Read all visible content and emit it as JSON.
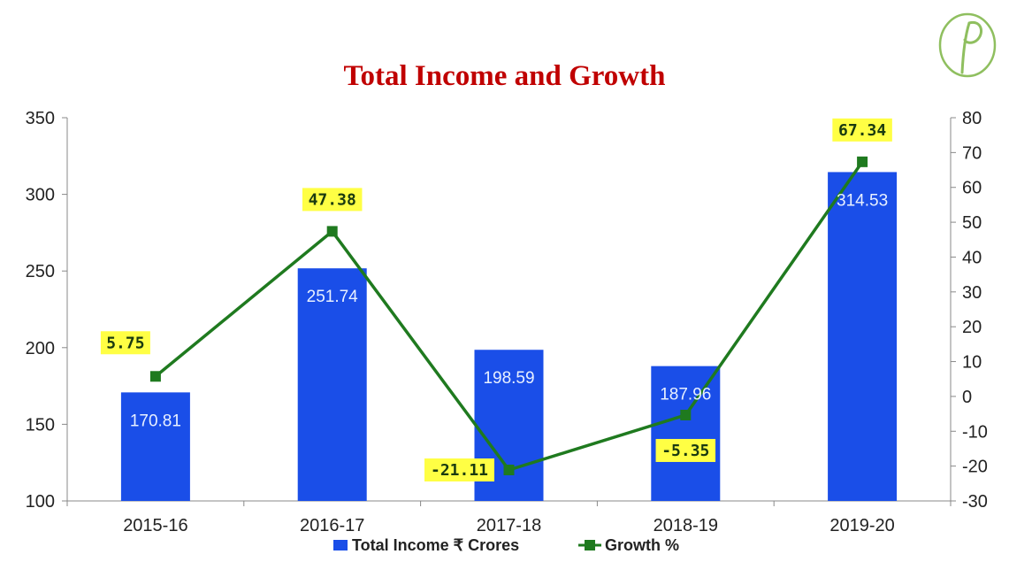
{
  "chart_data": {
    "type": "bar",
    "title": "Total Income and Growth",
    "categories": [
      "2015-16",
      "2016-17",
      "2017-18",
      "2018-19",
      "2019-20"
    ],
    "series": [
      {
        "name": "Total Income ₹ Crores",
        "kind": "bar",
        "axis": "left",
        "values": [
          170.81,
          251.74,
          198.59,
          187.96,
          314.53
        ],
        "labels": [
          "170.81",
          "251.74",
          "198.59",
          "187.96",
          "314.53"
        ]
      },
      {
        "name": "Growth %",
        "kind": "line",
        "axis": "right",
        "values": [
          5.75,
          47.38,
          -21.11,
          -5.35,
          67.34
        ],
        "labels": [
          "5.75",
          "47.38",
          "-21.11",
          "-5.35",
          "67.34"
        ]
      }
    ],
    "y_left": {
      "ylim": [
        100,
        350
      ],
      "ticks": [
        "100",
        "150",
        "200",
        "250",
        "300",
        "350"
      ]
    },
    "y_right": {
      "ylim": [
        -30,
        80
      ],
      "ticks": [
        "-30",
        "-20",
        "-10",
        "0",
        "10",
        "20",
        "30",
        "40",
        "50",
        "60",
        "70",
        "80"
      ]
    },
    "grid": false,
    "legend_position": "bottom",
    "colors": {
      "bar": "#1a4ee8",
      "line": "#1f7a1f",
      "label_box": "#ffff44",
      "title": "#c00000",
      "logo": "#8fbf5f"
    }
  },
  "logo": {
    "name": "script-p-logo-icon"
  }
}
